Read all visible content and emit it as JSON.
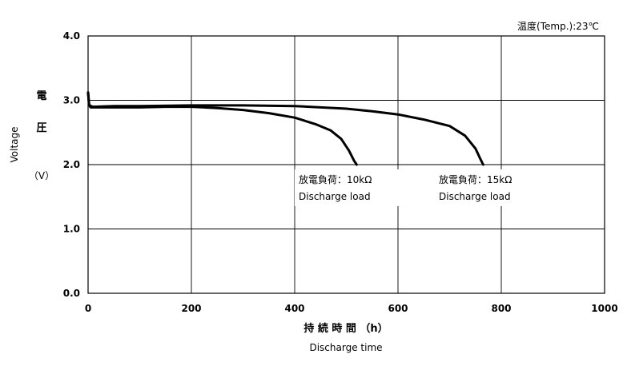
{
  "chart_data": {
    "type": "line",
    "condition": "温度(Temp.):23℃",
    "xlabel": "持 続 時 間 （h）",
    "xlabel_en": "Discharge time",
    "ylabel_chars": [
      "電",
      "圧"
    ],
    "ylabel_unit": "（V）",
    "ylabel_en": "Voltage",
    "xlim": [
      0,
      1000
    ],
    "ylim": [
      0.0,
      4.0
    ],
    "x_ticks": [
      "0",
      "200",
      "400",
      "600",
      "800",
      "1000"
    ],
    "y_ticks": [
      "0.0",
      "1.0",
      "2.0",
      "3.0",
      "4.0"
    ],
    "grid": true,
    "series": [
      {
        "label_ja": "放電負荷：10kΩ",
        "label_en": "Discharge load",
        "x": [
          0,
          2,
          5,
          10,
          50,
          100,
          150,
          200,
          250,
          300,
          350,
          400,
          440,
          470,
          490,
          505,
          515,
          520
        ],
        "y": [
          3.12,
          2.92,
          2.89,
          2.89,
          2.89,
          2.89,
          2.9,
          2.9,
          2.88,
          2.85,
          2.8,
          2.73,
          2.63,
          2.53,
          2.4,
          2.22,
          2.06,
          2.0
        ]
      },
      {
        "label_ja": "放電負荷：15kΩ",
        "label_en": "Discharge load",
        "x": [
          0,
          2,
          5,
          10,
          50,
          100,
          200,
          300,
          400,
          500,
          550,
          600,
          650,
          700,
          730,
          750,
          760,
          765
        ],
        "y": [
          3.12,
          2.93,
          2.91,
          2.9,
          2.91,
          2.91,
          2.92,
          2.92,
          2.91,
          2.87,
          2.83,
          2.78,
          2.7,
          2.6,
          2.45,
          2.25,
          2.08,
          2.0
        ]
      }
    ]
  }
}
